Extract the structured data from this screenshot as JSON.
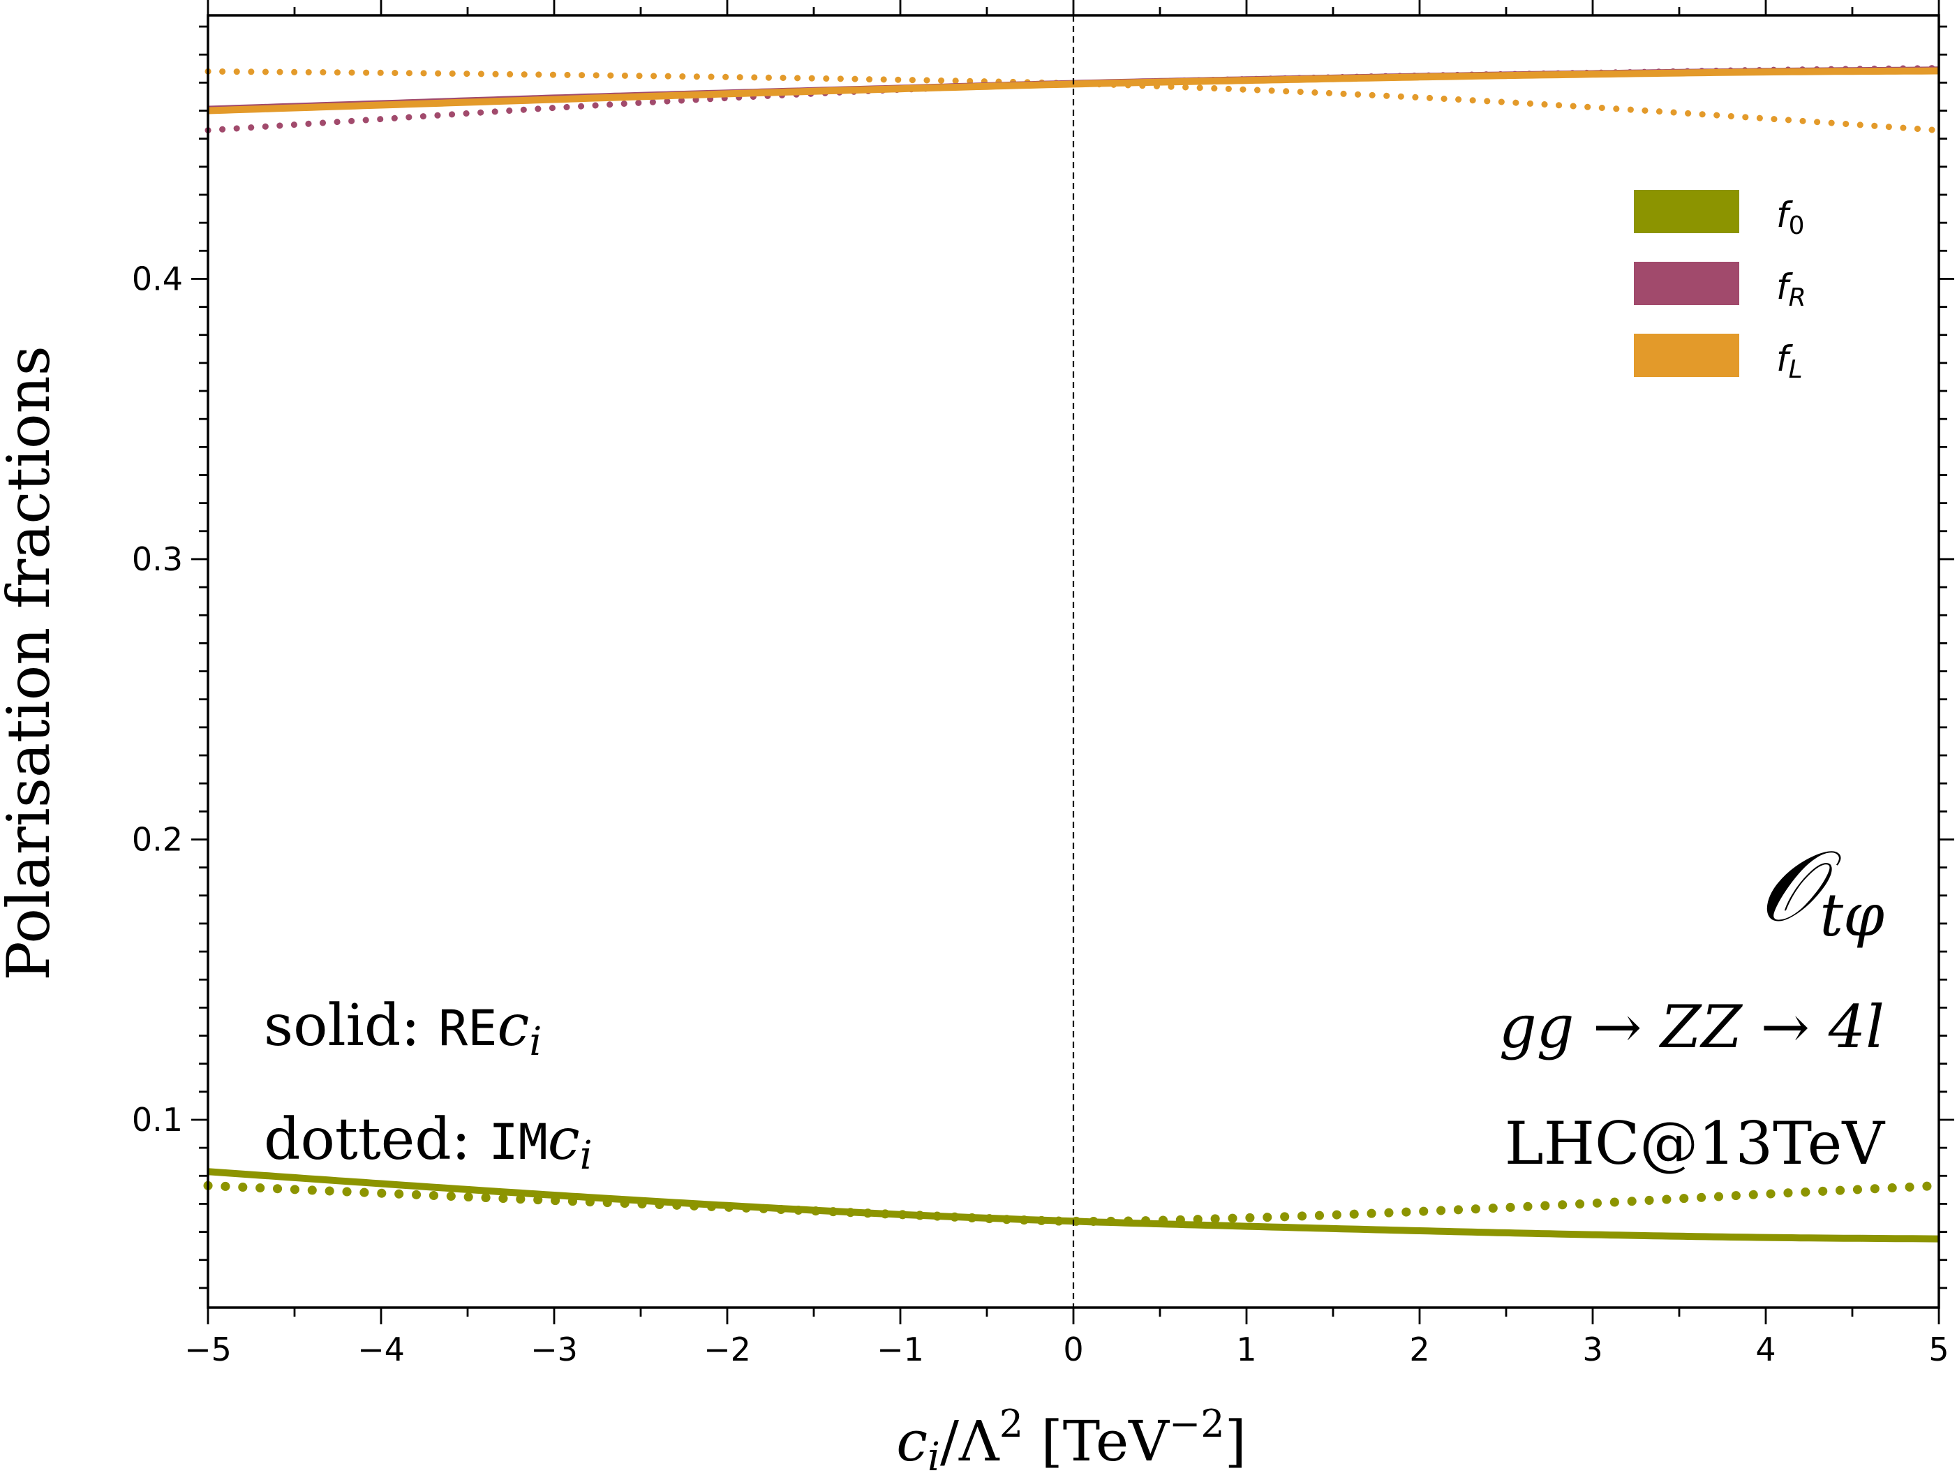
{
  "chart_data": {
    "type": "line",
    "xlabel": "c_i/Λ² [TeV⁻²]",
    "xlabel_parts": {
      "base": "c",
      "sub": "i",
      "mid": "/Λ",
      "sup": "2",
      "unit_open": " [TeV",
      "unit_sup": "−2",
      "unit_close": "]"
    },
    "ylabel": "Polarisation fractions",
    "xlim": [
      -5,
      5
    ],
    "ylim": [
      0.033,
      0.494
    ],
    "x_ticks": [
      -5,
      -4,
      -3,
      -2,
      -1,
      0,
      1,
      2,
      3,
      4,
      5
    ],
    "x_tick_labels": [
      "−5",
      "−4",
      "−3",
      "−2",
      "−1",
      "0",
      "1",
      "2",
      "3",
      "4",
      "5"
    ],
    "y_ticks": [
      0.1,
      0.2,
      0.3,
      0.4
    ],
    "y_tick_labels": [
      "0.1",
      "0.2",
      "0.3",
      "0.4"
    ],
    "grid": false,
    "reference_line_x": 0,
    "legend_position": "top-right",
    "legend": [
      {
        "label": "f",
        "sub": "0",
        "color": "#8c9400"
      },
      {
        "label": "f",
        "sub": "R",
        "color": "#a14a6c"
      },
      {
        "label": "f",
        "sub": "L",
        "color": "#e39a2a"
      }
    ],
    "annotations": {
      "operator": {
        "main": "𝒪",
        "sub": "tφ"
      },
      "process": "gg → ZZ → 4l",
      "collider": "LHC@13TeV",
      "solid_label": {
        "prefix": "solid: ",
        "mono": "RE",
        "var": "c",
        "sub": "i"
      },
      "dotted_label": {
        "prefix": "dotted: ",
        "mono": "IM",
        "var": "c",
        "sub": "i"
      }
    },
    "x": [
      -5,
      -4,
      -3,
      -2,
      -1,
      0,
      1,
      2,
      3,
      4,
      5
    ],
    "series": [
      {
        "name": "f_0",
        "style": "solid",
        "color": "#8c9400",
        "values": [
          0.0815,
          0.0772,
          0.0731,
          0.0694,
          0.0662,
          0.0638,
          0.062,
          0.0604,
          0.059,
          0.058,
          0.0575
        ]
      },
      {
        "name": "f_0",
        "style": "dotted",
        "color": "#8c9400",
        "values": [
          0.0765,
          0.0738,
          0.0712,
          0.0688,
          0.0662,
          0.0638,
          0.065,
          0.0673,
          0.0702,
          0.0735,
          0.0765
        ]
      },
      {
        "name": "f_R",
        "style": "solid",
        "color": "#a14a6c",
        "values": [
          0.4605,
          0.4625,
          0.4645,
          0.4663,
          0.468,
          0.4697,
          0.471,
          0.4722,
          0.4732,
          0.474,
          0.4745
        ]
      },
      {
        "name": "f_R",
        "style": "dotted",
        "color": "#a14a6c",
        "values": [
          0.453,
          0.457,
          0.461,
          0.4645,
          0.4675,
          0.4697,
          0.4712,
          0.4725,
          0.4735,
          0.4745,
          0.4752
        ]
      },
      {
        "name": "f_L",
        "style": "solid",
        "color": "#e39a2a",
        "values": [
          0.46,
          0.462,
          0.464,
          0.466,
          0.4678,
          0.4695,
          0.4708,
          0.472,
          0.473,
          0.4738,
          0.4742
        ]
      },
      {
        "name": "f_L",
        "style": "dotted",
        "color": "#e39a2a",
        "values": [
          0.474,
          0.4735,
          0.4728,
          0.472,
          0.471,
          0.4697,
          0.4675,
          0.4647,
          0.4612,
          0.4572,
          0.453
        ]
      }
    ]
  }
}
